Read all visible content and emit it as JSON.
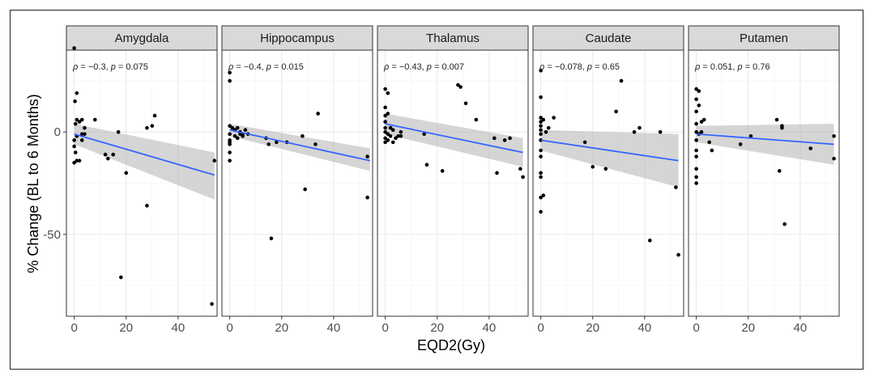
{
  "chart_data": {
    "type": "scatter",
    "xlabel": "EQD2(Gy)",
    "ylabel": "% Change (BL to 6 Months)",
    "xlim": [
      -3,
      55
    ],
    "ylim": [
      -90,
      40
    ],
    "x_ticks": [
      0,
      20,
      40
    ],
    "y_ticks": [
      0,
      -50
    ],
    "y_tick_labels": [
      "0",
      "-50"
    ],
    "grid": true,
    "panels": [
      {
        "name": "Amygdala",
        "rho": "−0.3",
        "p": "0.075",
        "fit": {
          "x": [
            0,
            54
          ],
          "y": [
            -1,
            -21
          ],
          "ci_lower": [
            -6,
            -33
          ],
          "ci_upper": [
            4,
            -10
          ]
        },
        "points": [
          [
            0,
            41
          ],
          [
            0.3,
            15
          ],
          [
            1,
            19
          ],
          [
            1,
            6
          ],
          [
            0.5,
            4
          ],
          [
            2,
            5
          ],
          [
            3,
            6
          ],
          [
            3,
            -4
          ],
          [
            0,
            -4
          ],
          [
            0,
            -7
          ],
          [
            0.5,
            -10
          ],
          [
            0,
            -15
          ],
          [
            1,
            -14
          ],
          [
            2,
            -14
          ],
          [
            1,
            -2
          ],
          [
            3,
            -1
          ],
          [
            4,
            -1
          ],
          [
            4,
            2
          ],
          [
            8,
            6
          ],
          [
            12,
            -11
          ],
          [
            13,
            -13
          ],
          [
            15,
            -11
          ],
          [
            17,
            0
          ],
          [
            18,
            -71
          ],
          [
            20,
            -20
          ],
          [
            28,
            -36
          ],
          [
            28,
            2
          ],
          [
            30,
            3
          ],
          [
            31,
            8
          ],
          [
            53,
            -84
          ],
          [
            54,
            -14
          ]
        ]
      },
      {
        "name": "Hippocampus",
        "rho": "−0.4",
        "p": "0.015",
        "fit": {
          "x": [
            0,
            54
          ],
          "y": [
            1,
            -14
          ],
          "ci_lower": [
            -2,
            -19
          ],
          "ci_upper": [
            4,
            -8
          ]
        },
        "points": [
          [
            0,
            29
          ],
          [
            0,
            25
          ],
          [
            0,
            3
          ],
          [
            0,
            -1
          ],
          [
            0,
            -4
          ],
          [
            0,
            -5
          ],
          [
            0,
            -6
          ],
          [
            0,
            -10
          ],
          [
            0,
            -14
          ],
          [
            1,
            2
          ],
          [
            2,
            1
          ],
          [
            2,
            -2
          ],
          [
            3,
            2
          ],
          [
            3,
            -3
          ],
          [
            4,
            0
          ],
          [
            4,
            -1
          ],
          [
            5,
            -1
          ],
          [
            5,
            -2
          ],
          [
            6,
            1
          ],
          [
            7,
            -1
          ],
          [
            14,
            -3
          ],
          [
            15,
            -6
          ],
          [
            16,
            -52
          ],
          [
            18,
            -5
          ],
          [
            22,
            -5
          ],
          [
            28,
            -2
          ],
          [
            29,
            -28
          ],
          [
            33,
            -6
          ],
          [
            34,
            9
          ],
          [
            53,
            -32
          ],
          [
            53,
            -12
          ]
        ]
      },
      {
        "name": "Thalamus",
        "rho": "−0.43",
        "p": "0.007",
        "fit": {
          "x": [
            0,
            53
          ],
          "y": [
            4,
            -10
          ],
          "ci_lower": [
            -1,
            -17
          ],
          "ci_upper": [
            9,
            -3
          ]
        },
        "points": [
          [
            0,
            21
          ],
          [
            0,
            12
          ],
          [
            0,
            8
          ],
          [
            0,
            5
          ],
          [
            0,
            2
          ],
          [
            0,
            0
          ],
          [
            0,
            -3
          ],
          [
            0,
            -5
          ],
          [
            1,
            19
          ],
          [
            1,
            9
          ],
          [
            1,
            -1
          ],
          [
            1,
            -4
          ],
          [
            2,
            2
          ],
          [
            2,
            -2
          ],
          [
            3,
            1
          ],
          [
            3,
            -5
          ],
          [
            4,
            -3
          ],
          [
            5,
            -2
          ],
          [
            6,
            0
          ],
          [
            6,
            -2
          ],
          [
            15,
            -1
          ],
          [
            16,
            -16
          ],
          [
            22,
            -19
          ],
          [
            28,
            23
          ],
          [
            29,
            22
          ],
          [
            31,
            14
          ],
          [
            35,
            6
          ],
          [
            42,
            -3
          ],
          [
            43,
            -20
          ],
          [
            46,
            -4
          ],
          [
            48,
            -3
          ],
          [
            52,
            -18
          ],
          [
            53,
            -22
          ]
        ]
      },
      {
        "name": "Caudate",
        "rho": "−0.078",
        "p": "0.65",
        "fit": {
          "x": [
            0,
            53
          ],
          "y": [
            -4,
            -14
          ],
          "ci_lower": [
            -9,
            -27
          ],
          "ci_upper": [
            1,
            -1
          ]
        },
        "points": [
          [
            0,
            30
          ],
          [
            0,
            17
          ],
          [
            0,
            7
          ],
          [
            0,
            5
          ],
          [
            0,
            3
          ],
          [
            0,
            1
          ],
          [
            0,
            -1
          ],
          [
            0,
            -4
          ],
          [
            0,
            -9
          ],
          [
            0,
            -12
          ],
          [
            0,
            -20
          ],
          [
            0,
            -22
          ],
          [
            0,
            -32
          ],
          [
            0,
            -39
          ],
          [
            1,
            -31
          ],
          [
            1,
            6
          ],
          [
            2,
            0
          ],
          [
            3,
            2
          ],
          [
            5,
            7
          ],
          [
            17,
            -5
          ],
          [
            20,
            -17
          ],
          [
            25,
            -18
          ],
          [
            29,
            10
          ],
          [
            31,
            25
          ],
          [
            36,
            0
          ],
          [
            38,
            2
          ],
          [
            42,
            -53
          ],
          [
            46,
            0
          ],
          [
            52,
            -27
          ],
          [
            53,
            -60
          ]
        ]
      },
      {
        "name": "Putamen",
        "rho": "0.051",
        "p": "0.76",
        "fit": {
          "x": [
            0,
            53
          ],
          "y": [
            -1,
            -6
          ],
          "ci_lower": [
            -5,
            -16
          ],
          "ci_upper": [
            3,
            4
          ]
        },
        "points": [
          [
            0,
            21
          ],
          [
            0,
            16
          ],
          [
            0,
            10
          ],
          [
            0,
            4
          ],
          [
            0,
            0
          ],
          [
            0,
            -4
          ],
          [
            0,
            -9
          ],
          [
            0,
            -12
          ],
          [
            0,
            -18
          ],
          [
            0,
            -22
          ],
          [
            0,
            -25
          ],
          [
            1,
            20
          ],
          [
            1,
            13
          ],
          [
            1,
            -1
          ],
          [
            2,
            5
          ],
          [
            2,
            0
          ],
          [
            3,
            6
          ],
          [
            5,
            -5
          ],
          [
            6,
            -9
          ],
          [
            17,
            -6
          ],
          [
            21,
            -2
          ],
          [
            31,
            6
          ],
          [
            32,
            -19
          ],
          [
            33,
            3
          ],
          [
            33,
            2
          ],
          [
            34,
            -45
          ],
          [
            44,
            -8
          ],
          [
            53,
            -2
          ],
          [
            53,
            -13
          ]
        ]
      }
    ]
  }
}
